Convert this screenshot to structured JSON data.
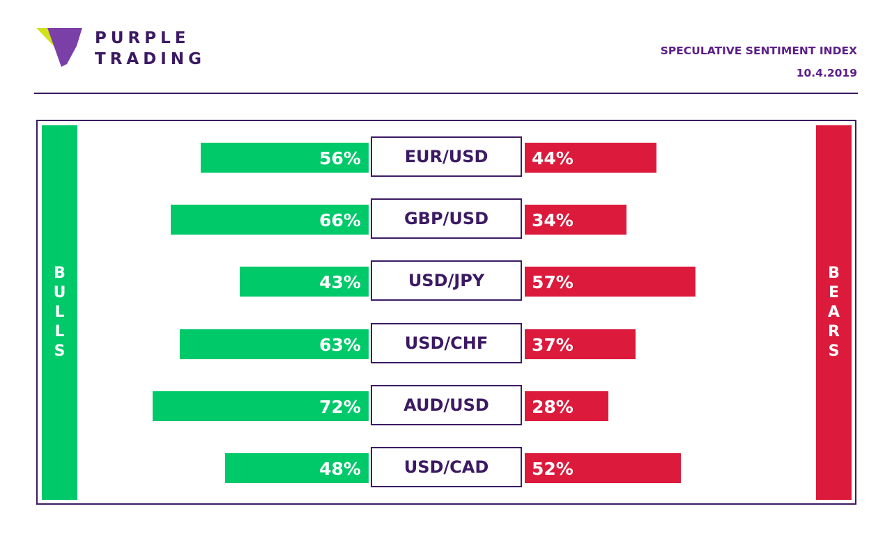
{
  "brand": {
    "logo_line1": "PURPLE",
    "logo_line2": "TRADING",
    "colors": {
      "primary": "#3c1a63",
      "accent": "#5b1e87",
      "logo_yellow": "#cfe21a",
      "logo_violet": "#7b3fa8"
    }
  },
  "header": {
    "title": "SPECULATIVE SENTIMENT INDEX",
    "date": "10.4.2019"
  },
  "chart_data": {
    "type": "bar",
    "categories": [
      "EUR/USD",
      "GBP/USD",
      "USD/JPY",
      "USD/CHF",
      "AUD/USD",
      "USD/CAD"
    ],
    "series": [
      {
        "name": "BULLS",
        "color": "#00c96a",
        "values": [
          56,
          66,
          43,
          63,
          72,
          48
        ],
        "labels": [
          "56%",
          "66%",
          "43%",
          "63%",
          "72%",
          "48%"
        ]
      },
      {
        "name": "BEARS",
        "color": "#dc1a3c",
        "values": [
          44,
          34,
          57,
          37,
          28,
          52
        ],
        "labels": [
          "44%",
          "34%",
          "57%",
          "37%",
          "28%",
          "52%"
        ]
      }
    ],
    "unit": "%",
    "ylim": [
      0,
      100
    ]
  }
}
